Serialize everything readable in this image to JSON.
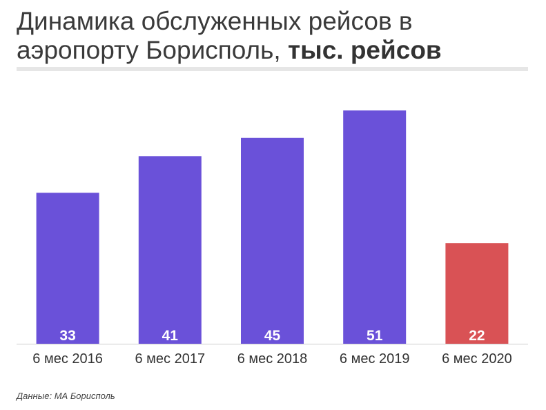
{
  "title": {
    "main": "Динамика обслуженных рейсов в аэропорту Борисполь,",
    "unit": "тыс. рейсов"
  },
  "source": "Данные: МА Борисполь",
  "colors": {
    "normal_bar": "#6a51d9",
    "highlight_bar": "#d95255",
    "value_label": "#ffffff",
    "tick_label": "#333333",
    "baseline": "#cccccc"
  },
  "chart_data": {
    "type": "bar",
    "categories": [
      "6 мес 2016",
      "6 мес 2017",
      "6 мес 2018",
      "6 мес 2019",
      "6 мес 2020"
    ],
    "values": [
      33,
      41,
      45,
      51,
      22
    ],
    "highlight_index": 4,
    "ylim": [
      0,
      51
    ],
    "grid": false,
    "legend": "none",
    "data_labels": "inside-bottom"
  }
}
